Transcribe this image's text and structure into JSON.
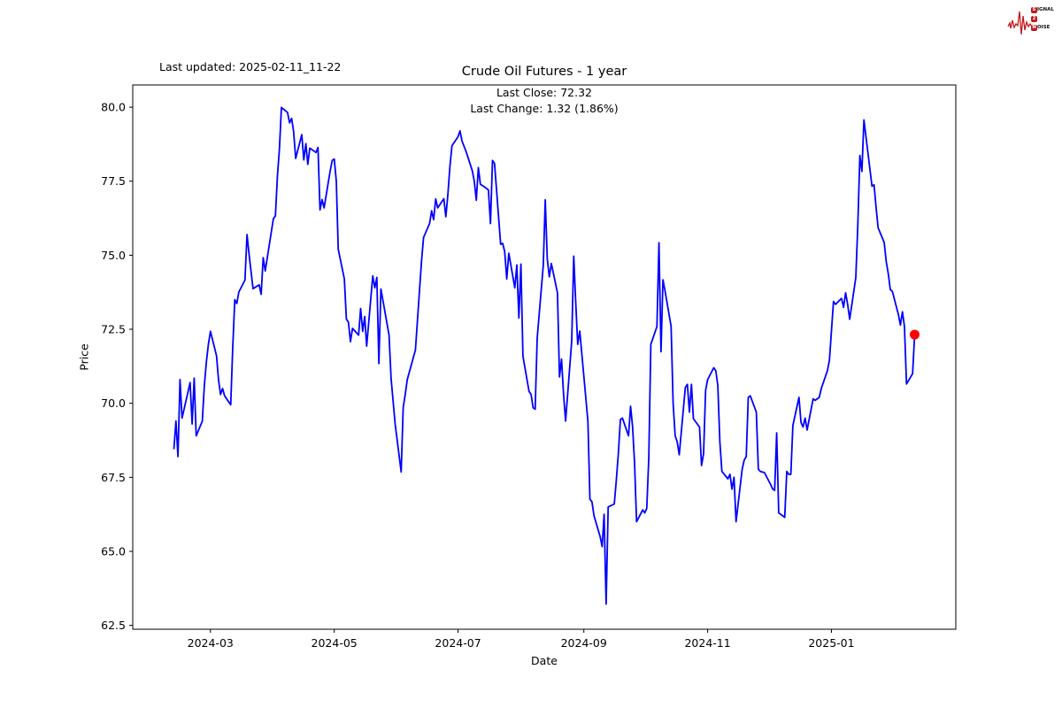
{
  "header": {
    "last_updated": "Last updated: 2025-02-11_11-22",
    "logo": {
      "color": "#c01818",
      "line1_initial": "S",
      "line1_rest": "IGNAL",
      "line2_initial": "2",
      "line2_rest": "",
      "line3_initial": "N",
      "line3_rest": "OISE"
    }
  },
  "chart_data": {
    "type": "line",
    "title": "Crude Oil Futures - 1 year",
    "annotation": {
      "last_close_label": "Last Close: 72.32",
      "last_change_label": "Last Change: 1.32 (1.86%)",
      "last_close": 72.32,
      "last_change": 1.32,
      "last_change_pct": 1.86
    },
    "xlabel": "Date",
    "ylabel": "Price",
    "grid": false,
    "legend": "none",
    "line_color": "#0000ff",
    "line_width": 1.8,
    "marker_color": "#ff0000",
    "axes_color": "#000000",
    "ylim": [
      62.37,
      80.75
    ],
    "y_ticks": [
      "62.5",
      "65.0",
      "67.5",
      "70.0",
      "72.5",
      "75.0",
      "77.5",
      "80.0"
    ],
    "x_ticks": [
      {
        "label": "2024-03",
        "date": "2024-03-01"
      },
      {
        "label": "2024-05",
        "date": "2024-05-01"
      },
      {
        "label": "2024-07",
        "date": "2024-07-01"
      },
      {
        "label": "2024-09",
        "date": "2024-09-01"
      },
      {
        "label": "2024-11",
        "date": "2024-11-01"
      },
      {
        "label": "2025-01",
        "date": "2025-01-01"
      }
    ],
    "series": [
      {
        "name": "Crude Oil Futures",
        "points": [
          [
            "2024-02-12",
            68.45
          ],
          [
            "2024-02-13",
            69.4
          ],
          [
            "2024-02-14",
            68.2
          ],
          [
            "2024-02-15",
            70.8
          ],
          [
            "2024-02-16",
            69.5
          ],
          [
            "2024-02-20",
            70.7
          ],
          [
            "2024-02-21",
            69.3
          ],
          [
            "2024-02-22",
            70.85
          ],
          [
            "2024-02-23",
            68.9
          ],
          [
            "2024-02-26",
            69.4
          ],
          [
            "2024-02-27",
            70.6
          ],
          [
            "2024-02-28",
            71.4
          ],
          [
            "2024-02-29",
            72.0
          ],
          [
            "2024-03-01",
            72.43
          ],
          [
            "2024-03-04",
            71.6
          ],
          [
            "2024-03-05",
            70.8
          ],
          [
            "2024-03-06",
            70.3
          ],
          [
            "2024-03-07",
            70.5
          ],
          [
            "2024-03-08",
            70.25
          ],
          [
            "2024-03-11",
            69.95
          ],
          [
            "2024-03-12",
            71.9
          ],
          [
            "2024-03-13",
            73.5
          ],
          [
            "2024-03-14",
            73.37
          ],
          [
            "2024-03-15",
            73.76
          ],
          [
            "2024-03-18",
            74.16
          ],
          [
            "2024-03-19",
            75.7
          ],
          [
            "2024-03-20",
            75.07
          ],
          [
            "2024-03-21",
            74.47
          ],
          [
            "2024-03-22",
            73.87
          ],
          [
            "2024-03-25",
            74.0
          ],
          [
            "2024-03-26",
            73.68
          ],
          [
            "2024-03-27",
            74.92
          ],
          [
            "2024-03-28",
            74.47
          ],
          [
            "2024-04-01",
            76.23
          ],
          [
            "2024-04-02",
            76.33
          ],
          [
            "2024-04-03",
            77.68
          ],
          [
            "2024-04-04",
            78.57
          ],
          [
            "2024-04-05",
            79.99
          ],
          [
            "2024-04-08",
            79.82
          ],
          [
            "2024-04-09",
            79.47
          ],
          [
            "2024-04-10",
            79.62
          ],
          [
            "2024-04-11",
            79.17
          ],
          [
            "2024-04-12",
            78.27
          ],
          [
            "2024-04-15",
            79.07
          ],
          [
            "2024-04-16",
            78.22
          ],
          [
            "2024-04-17",
            78.77
          ],
          [
            "2024-04-18",
            78.07
          ],
          [
            "2024-04-19",
            78.62
          ],
          [
            "2024-04-22",
            78.47
          ],
          [
            "2024-04-23",
            78.64
          ],
          [
            "2024-04-24",
            76.53
          ],
          [
            "2024-04-25",
            76.88
          ],
          [
            "2024-04-26",
            76.6
          ],
          [
            "2024-04-29",
            77.85
          ],
          [
            "2024-04-30",
            78.2
          ],
          [
            "2024-05-01",
            78.25
          ],
          [
            "2024-05-02",
            77.5
          ],
          [
            "2024-05-03",
            75.2
          ],
          [
            "2024-05-06",
            74.2
          ],
          [
            "2024-05-07",
            72.84
          ],
          [
            "2024-05-08",
            72.74
          ],
          [
            "2024-05-09",
            72.08
          ],
          [
            "2024-05-10",
            72.53
          ],
          [
            "2024-05-13",
            72.3
          ],
          [
            "2024-05-14",
            73.2
          ],
          [
            "2024-05-15",
            72.43
          ],
          [
            "2024-05-16",
            72.93
          ],
          [
            "2024-05-17",
            71.93
          ],
          [
            "2024-05-20",
            74.3
          ],
          [
            "2024-05-21",
            73.9
          ],
          [
            "2024-05-22",
            74.25
          ],
          [
            "2024-05-23",
            71.34
          ],
          [
            "2024-05-24",
            73.86
          ],
          [
            "2024-05-28",
            72.3
          ],
          [
            "2024-05-29",
            70.84
          ],
          [
            "2024-05-31",
            69.3
          ],
          [
            "2024-06-03",
            67.68
          ],
          [
            "2024-06-04",
            69.86
          ],
          [
            "2024-06-05",
            70.3
          ],
          [
            "2024-06-06",
            70.8
          ],
          [
            "2024-06-10",
            71.8
          ],
          [
            "2024-06-11",
            72.8
          ],
          [
            "2024-06-12",
            73.8
          ],
          [
            "2024-06-13",
            74.8
          ],
          [
            "2024-06-14",
            75.6
          ],
          [
            "2024-06-17",
            76.07
          ],
          [
            "2024-06-18",
            76.5
          ],
          [
            "2024-06-19",
            76.2
          ],
          [
            "2024-06-20",
            76.9
          ],
          [
            "2024-06-21",
            76.6
          ],
          [
            "2024-06-24",
            76.91
          ],
          [
            "2024-06-25",
            76.3
          ],
          [
            "2024-06-26",
            77.06
          ],
          [
            "2024-06-27",
            78.0
          ],
          [
            "2024-06-28",
            78.7
          ],
          [
            "2024-07-01",
            79.0
          ],
          [
            "2024-07-02",
            79.2
          ],
          [
            "2024-07-03",
            78.85
          ],
          [
            "2024-07-05",
            78.5
          ],
          [
            "2024-07-08",
            77.86
          ],
          [
            "2024-07-09",
            77.5
          ],
          [
            "2024-07-10",
            76.86
          ],
          [
            "2024-07-11",
            77.96
          ],
          [
            "2024-07-12",
            77.4
          ],
          [
            "2024-07-15",
            77.26
          ],
          [
            "2024-07-16",
            77.2
          ],
          [
            "2024-07-17",
            76.07
          ],
          [
            "2024-07-18",
            78.2
          ],
          [
            "2024-07-19",
            78.1
          ],
          [
            "2024-07-22",
            75.37
          ],
          [
            "2024-07-23",
            75.4
          ],
          [
            "2024-07-24",
            75.12
          ],
          [
            "2024-07-25",
            74.2
          ],
          [
            "2024-07-26",
            75.07
          ],
          [
            "2024-07-29",
            73.9
          ],
          [
            "2024-07-30",
            74.67
          ],
          [
            "2024-07-31",
            72.88
          ],
          [
            "2024-08-01",
            74.7
          ],
          [
            "2024-08-02",
            71.59
          ],
          [
            "2024-08-05",
            70.4
          ],
          [
            "2024-08-06",
            70.3
          ],
          [
            "2024-08-07",
            69.85
          ],
          [
            "2024-08-08",
            69.8
          ],
          [
            "2024-08-09",
            72.2
          ],
          [
            "2024-08-12",
            74.67
          ],
          [
            "2024-08-13",
            76.87
          ],
          [
            "2024-08-14",
            74.87
          ],
          [
            "2024-08-15",
            74.27
          ],
          [
            "2024-08-16",
            74.72
          ],
          [
            "2024-08-19",
            73.73
          ],
          [
            "2024-08-20",
            70.89
          ],
          [
            "2024-08-21",
            71.49
          ],
          [
            "2024-08-22",
            70.3
          ],
          [
            "2024-08-23",
            69.4
          ],
          [
            "2024-08-26",
            72.1
          ],
          [
            "2024-08-27",
            74.97
          ],
          [
            "2024-08-28",
            73.43
          ],
          [
            "2024-08-29",
            71.99
          ],
          [
            "2024-08-30",
            72.44
          ],
          [
            "2024-09-03",
            69.4
          ],
          [
            "2024-09-04",
            66.76
          ],
          [
            "2024-09-05",
            66.67
          ],
          [
            "2024-09-06",
            66.2
          ],
          [
            "2024-09-09",
            65.5
          ],
          [
            "2024-09-10",
            65.16
          ],
          [
            "2024-09-11",
            66.25
          ],
          [
            "2024-09-12",
            63.22
          ],
          [
            "2024-09-13",
            66.5
          ],
          [
            "2024-09-16",
            66.6
          ],
          [
            "2024-09-17",
            67.4
          ],
          [
            "2024-09-18",
            68.3
          ],
          [
            "2024-09-19",
            69.45
          ],
          [
            "2024-09-20",
            69.5
          ],
          [
            "2024-09-23",
            68.9
          ],
          [
            "2024-09-24",
            69.9
          ],
          [
            "2024-09-25",
            69.2
          ],
          [
            "2024-09-26",
            68.0
          ],
          [
            "2024-09-27",
            66.0
          ],
          [
            "2024-09-30",
            66.4
          ],
          [
            "2024-10-01",
            66.3
          ],
          [
            "2024-10-02",
            66.45
          ],
          [
            "2024-10-03",
            68.16
          ],
          [
            "2024-10-04",
            71.99
          ],
          [
            "2024-10-07",
            72.59
          ],
          [
            "2024-10-08",
            75.42
          ],
          [
            "2024-10-09",
            71.74
          ],
          [
            "2024-10-10",
            74.17
          ],
          [
            "2024-10-11",
            73.8
          ],
          [
            "2024-10-14",
            72.6
          ],
          [
            "2024-10-15",
            70.0
          ],
          [
            "2024-10-16",
            68.9
          ],
          [
            "2024-10-17",
            68.7
          ],
          [
            "2024-10-18",
            68.26
          ],
          [
            "2024-10-21",
            70.54
          ],
          [
            "2024-10-22",
            70.64
          ],
          [
            "2024-10-23",
            69.7
          ],
          [
            "2024-10-24",
            70.64
          ],
          [
            "2024-10-25",
            69.48
          ],
          [
            "2024-10-28",
            69.2
          ],
          [
            "2024-10-29",
            67.9
          ],
          [
            "2024-10-30",
            68.3
          ],
          [
            "2024-10-31",
            70.44
          ],
          [
            "2024-11-01",
            70.8
          ],
          [
            "2024-11-04",
            71.2
          ],
          [
            "2024-11-05",
            71.1
          ],
          [
            "2024-11-06",
            70.6
          ],
          [
            "2024-11-07",
            68.7
          ],
          [
            "2024-11-08",
            67.7
          ],
          [
            "2024-11-11",
            67.45
          ],
          [
            "2024-11-12",
            67.6
          ],
          [
            "2024-11-13",
            67.1
          ],
          [
            "2024-11-14",
            67.5
          ],
          [
            "2024-11-15",
            66.0
          ],
          [
            "2024-11-18",
            67.77
          ],
          [
            "2024-11-19",
            68.08
          ],
          [
            "2024-11-20",
            68.2
          ],
          [
            "2024-11-21",
            70.2
          ],
          [
            "2024-11-22",
            70.25
          ],
          [
            "2024-11-25",
            69.7
          ],
          [
            "2024-11-26",
            67.77
          ],
          [
            "2024-11-27",
            67.7
          ],
          [
            "2024-11-29",
            67.66
          ],
          [
            "2024-12-02",
            67.26
          ],
          [
            "2024-12-03",
            67.11
          ],
          [
            "2024-12-04",
            67.06
          ],
          [
            "2024-12-05",
            69.0
          ],
          [
            "2024-12-06",
            66.3
          ],
          [
            "2024-12-09",
            66.15
          ],
          [
            "2024-12-10",
            67.7
          ],
          [
            "2024-12-11",
            67.6
          ],
          [
            "2024-12-12",
            67.6
          ],
          [
            "2024-12-13",
            69.25
          ],
          [
            "2024-12-16",
            70.2
          ],
          [
            "2024-12-17",
            69.35
          ],
          [
            "2024-12-18",
            69.2
          ],
          [
            "2024-12-19",
            69.5
          ],
          [
            "2024-12-20",
            69.1
          ],
          [
            "2024-12-23",
            70.15
          ],
          [
            "2024-12-24",
            70.1
          ],
          [
            "2024-12-26",
            70.2
          ],
          [
            "2024-12-27",
            70.5
          ],
          [
            "2024-12-30",
            71.1
          ],
          [
            "2024-12-31",
            71.45
          ],
          [
            "2025-01-02",
            73.44
          ],
          [
            "2025-01-03",
            73.34
          ],
          [
            "2025-01-06",
            73.54
          ],
          [
            "2025-01-07",
            73.24
          ],
          [
            "2025-01-08",
            73.73
          ],
          [
            "2025-01-09",
            73.34
          ],
          [
            "2025-01-10",
            72.84
          ],
          [
            "2025-01-13",
            74.24
          ],
          [
            "2025-01-14",
            76.03
          ],
          [
            "2025-01-15",
            78.37
          ],
          [
            "2025-01-16",
            77.83
          ],
          [
            "2025-01-17",
            79.57
          ],
          [
            "2025-01-21",
            77.33
          ],
          [
            "2025-01-22",
            77.38
          ],
          [
            "2025-01-23",
            76.63
          ],
          [
            "2025-01-24",
            75.93
          ],
          [
            "2025-01-27",
            75.43
          ],
          [
            "2025-01-28",
            74.78
          ],
          [
            "2025-01-29",
            74.38
          ],
          [
            "2025-01-30",
            73.84
          ],
          [
            "2025-01-31",
            73.78
          ],
          [
            "2025-02-03",
            72.99
          ],
          [
            "2025-02-04",
            72.64
          ],
          [
            "2025-02-05",
            73.09
          ],
          [
            "2025-02-06",
            72.59
          ],
          [
            "2025-02-07",
            70.65
          ],
          [
            "2025-02-10",
            71.0
          ],
          [
            "2025-02-11",
            72.32
          ]
        ]
      }
    ]
  }
}
